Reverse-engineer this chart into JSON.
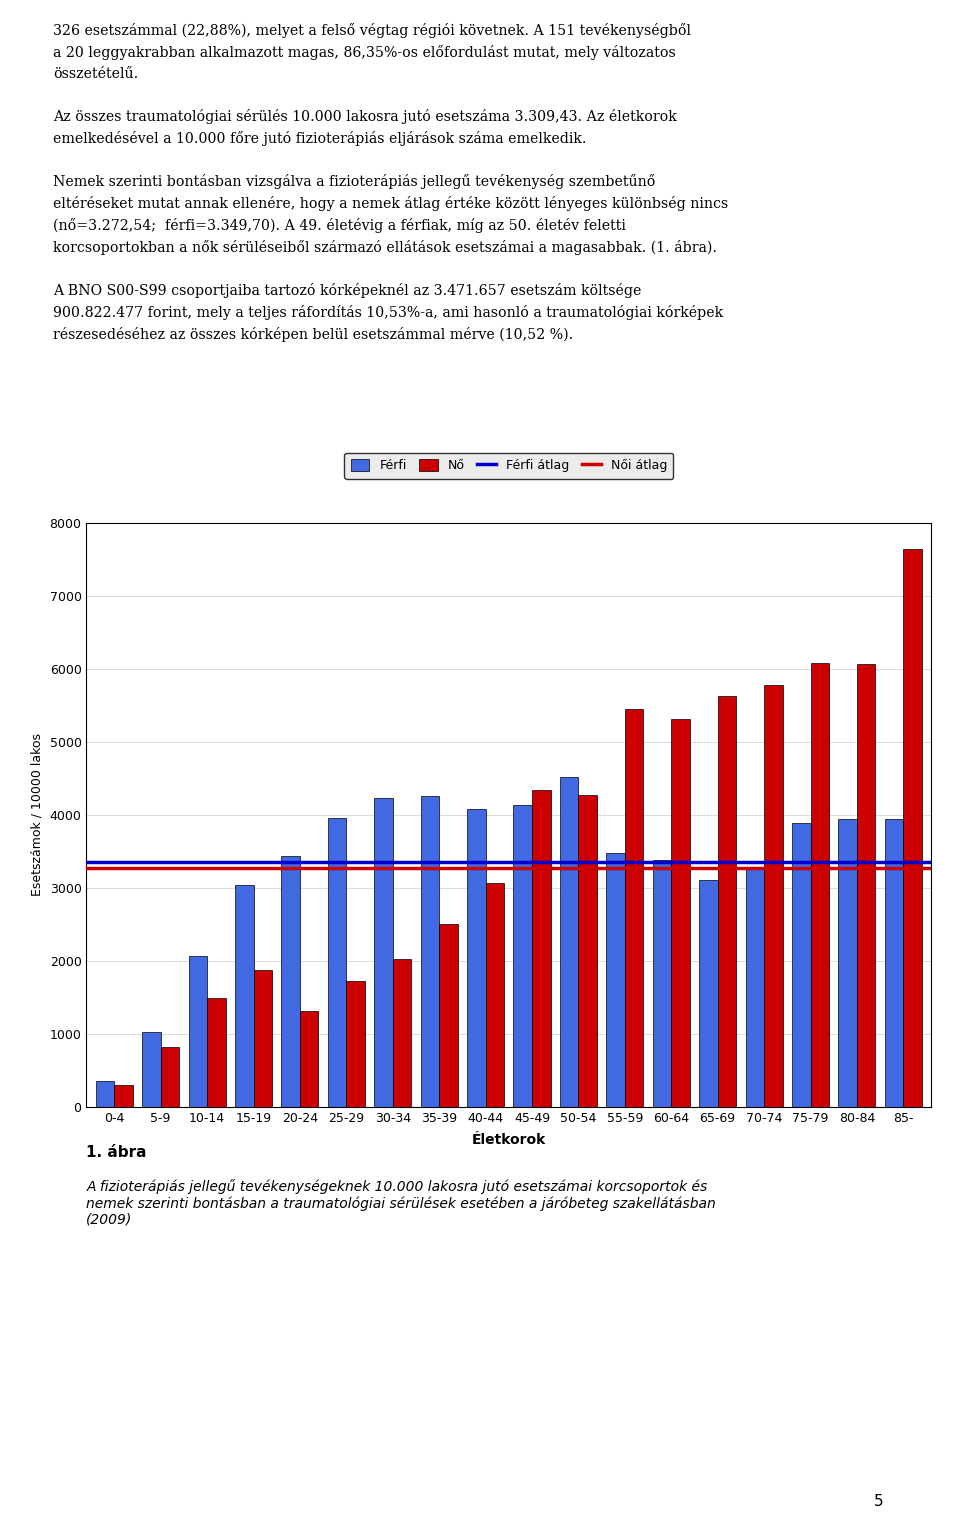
{
  "categories": [
    "0-4",
    "5-9",
    "10-14",
    "15-19",
    "20-24",
    "25-29",
    "30-34",
    "35-39",
    "40-44",
    "45-49",
    "50-54",
    "55-59",
    "60-64",
    "65-69",
    "70-74",
    "75-79",
    "80-84",
    "85-"
  ],
  "ferfi": [
    350,
    1020,
    2060,
    3030,
    3430,
    3960,
    4230,
    4250,
    4080,
    4130,
    4510,
    3470,
    3380,
    3110,
    3260,
    3880,
    3940,
    3940
  ],
  "no": [
    290,
    820,
    1490,
    1870,
    1310,
    1720,
    2020,
    2500,
    3060,
    4340,
    4270,
    5450,
    5310,
    5620,
    5780,
    6070,
    6060,
    7640
  ],
  "ferfi_atlag": 3349.7,
  "noi_atlag": 3272.54,
  "ylabel": "Esetszámok / 10000 lakos",
  "xlabel": "Életkorok",
  "ylim": [
    0,
    8000
  ],
  "yticks": [
    0,
    1000,
    2000,
    3000,
    4000,
    5000,
    6000,
    7000,
    8000
  ],
  "legend_labels": [
    "Férfi",
    "Nő",
    "Férfi átlag",
    "Női átlag"
  ],
  "ferfi_color": "#4169E1",
  "no_color": "#CC0000",
  "ferfi_atlag_color": "#0000CD",
  "noi_atlag_color": "#CC0000",
  "bar_width": 0.4,
  "chart_bg": "#E8E8E8",
  "plot_bg": "#FFFFFF",
  "caption_bold": "1. ábra",
  "caption_italic": "A fizioterápiás jellegű tevékenységeknek 10.000 lakosra jutó esetszámai korcsoportok és\nnemek szerinti bontásban a traumatológiai sérülések esetében a járóbeteg szakellátásban\n(2009)",
  "page_number": "5"
}
